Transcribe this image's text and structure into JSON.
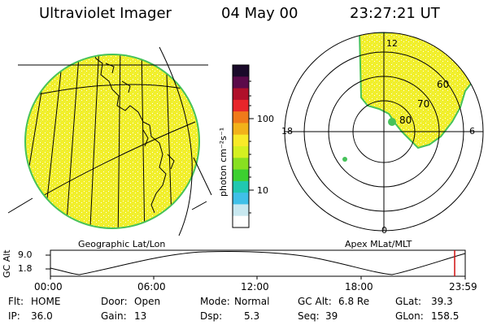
{
  "header": {
    "instrument": "Ultraviolet Imager",
    "date": "04 May 00",
    "time": "23:27:21 UT"
  },
  "colorbar": {
    "label": "photon cm⁻²s⁻¹",
    "ticks": [
      "100",
      "10"
    ],
    "colors": [
      "#1a0a2a",
      "#5b0a4a",
      "#b0102a",
      "#e8262a",
      "#f07a1a",
      "#f2b21a",
      "#f8ea28",
      "#d4f020",
      "#88e020",
      "#3cd030",
      "#20c8b0",
      "#40c0e8",
      "#c8e8f0",
      "#ffffff"
    ]
  },
  "globe_panel": {
    "label": "Geographic Lat/Lon",
    "fill_color": "#f2ef2a",
    "rim_color": "#46c25a"
  },
  "polar_panel": {
    "label": "Apex MLat/MLT",
    "mlt_labels": {
      "top": "12",
      "left": "18",
      "right": "6",
      "bottom": "0"
    },
    "lat_labels": [
      "60",
      "70",
      "80"
    ]
  },
  "timeline": {
    "axis_label": "GC Alt",
    "y_ticks": [
      "9.0",
      "1.8"
    ],
    "x_ticks": [
      "00:00",
      "06:00",
      "12:00",
      "18:00",
      "23:59"
    ],
    "marker_color": "#d01010"
  },
  "footer": {
    "flt_label": "Flt:",
    "flt_value": "HOME",
    "ip_label": "IP:",
    "ip_value": "36.0",
    "door_label": "Door:",
    "door_value": "Open",
    "gain_label": "Gain:",
    "gain_value": "13",
    "mode_label": "Mode:",
    "mode_value": "Normal",
    "dsp_label": "Dsp:",
    "dsp_value": "5.3",
    "gcalt_label": "GC Alt:",
    "gcalt_value": "6.8 Re",
    "seq_label": "Seq:",
    "seq_value": "39",
    "glat_label": "GLat:",
    "glat_value": "39.3",
    "glon_label": "GLon:",
    "glon_value": "158.5"
  }
}
